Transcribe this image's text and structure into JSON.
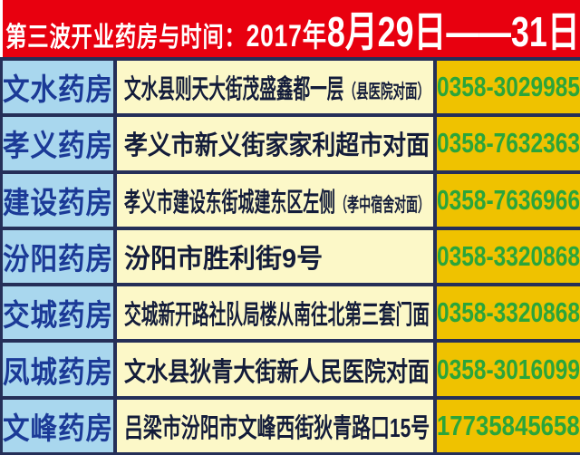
{
  "title": {
    "prefix": "第三波开业药房与时间：",
    "year": "2017年",
    "date_range": "8月29日——31日"
  },
  "colors": {
    "header_bg": "#e8000f",
    "header_text": "#ffffff",
    "name_cell_bg": "#a9d7ee",
    "name_cell_text": "#1b3a97",
    "address_cell_bg": "#fcf8c8",
    "address_cell_text": "#131c3a",
    "phone_cell_bg": "#efc200",
    "phone_cell_text": "#2ba53a",
    "grid_border": "#252f58"
  },
  "table": {
    "rows": [
      {
        "name": "文水药房",
        "address": "文水县则天大街茂盛鑫都一层",
        "address_note": "（县医院对面）",
        "phone": "0358-3029985"
      },
      {
        "name": "孝义药房",
        "address": "孝义市新义街家家利超市对面",
        "address_note": "",
        "phone": "0358-7632363"
      },
      {
        "name": "建设药房",
        "address": "孝义市建设东街城建东区左侧",
        "address_note": "（孝中宿舍对面）",
        "phone": "0358-7636966"
      },
      {
        "name": "汾阳药房",
        "address": "汾阳市胜利街9号",
        "address_note": "",
        "phone": "0358-3320868"
      },
      {
        "name": "交城药房",
        "address": "交城新开路社队局楼从南往北第三套门面",
        "address_note": "",
        "phone": "0358-3320868"
      },
      {
        "name": "凤城药房",
        "address": "文水县狄青大街新人民医院对面",
        "address_note": "",
        "phone": "0358-3016099"
      },
      {
        "name": "文峰药房",
        "address": "吕梁市汾阳市文峰西街狄青路口15号",
        "address_note": "",
        "phone": "17735845658"
      }
    ]
  }
}
